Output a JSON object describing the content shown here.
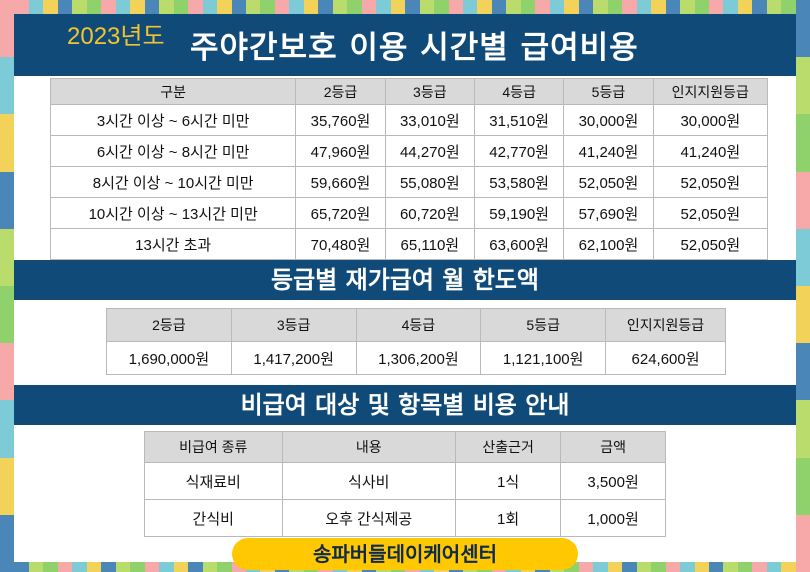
{
  "header": {
    "year": "2023년도",
    "title": "주야간보호 이용 시간별 급여비용"
  },
  "time_table": {
    "headers": [
      "구분",
      "2등급",
      "3등급",
      "4등급",
      "5등급",
      "인지지원등급"
    ],
    "rows": [
      [
        "3시간 이상 ~ 6시간 미만",
        "35,760원",
        "33,010원",
        "31,510원",
        "30,000원",
        "30,000원"
      ],
      [
        "6시간 이상 ~ 8시간 미만",
        "47,960원",
        "44,270원",
        "42,770원",
        "41,240원",
        "41,240원"
      ],
      [
        "8시간 이상 ~ 10시간 미만",
        "59,660원",
        "55,080원",
        "53,580원",
        "52,050원",
        "52,050원"
      ],
      [
        "10시간 이상 ~ 13시간 미만",
        "65,720원",
        "60,720원",
        "59,190원",
        "57,690원",
        "52,050원"
      ],
      [
        "13시간 초과",
        "70,480원",
        "65,110원",
        "63,600원",
        "62,100원",
        "52,050원"
      ]
    ]
  },
  "limit_section": {
    "title": "등급별 재가급여 월 한도액",
    "headers": [
      "2등급",
      "3등급",
      "4등급",
      "5등급",
      "인지지원등급"
    ],
    "values": [
      "1,690,000원",
      "1,417,200원",
      "1,306,200원",
      "1,121,100원",
      "624,600원"
    ]
  },
  "noncovered_section": {
    "title": "비급여 대상 및 항목별 비용 안내",
    "headers": [
      "비급여 종류",
      "내용",
      "산출근거",
      "금액"
    ],
    "rows": [
      [
        "식재료비",
        "식사비",
        "1식",
        "3,500원"
      ],
      [
        "간식비",
        "오후 간식제공",
        "1회",
        "1,000원"
      ]
    ]
  },
  "footer": {
    "center_name": "송파버들데이케어센터"
  },
  "colors": {
    "banner": "#0f4a78",
    "year_text": "#f4c430",
    "footer_pill": "#ffc800",
    "header_cell": "#d9d9d9",
    "border_palette": [
      "#8fd16a",
      "#f7a8a8",
      "#7ccbd6",
      "#f3d25a",
      "#4a86b8",
      "#b9dc6c"
    ]
  }
}
